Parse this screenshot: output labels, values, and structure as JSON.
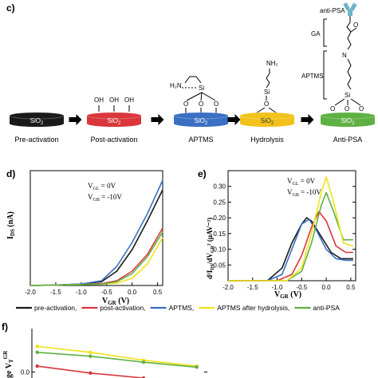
{
  "panel_c": {
    "label": "c)",
    "disk_text": "SiO",
    "disk_sub": "2",
    "steps": [
      {
        "caption": "Pre-activation",
        "color": "#1a1a1a"
      },
      {
        "caption": "Post-activation",
        "color": "#d9373b"
      },
      {
        "caption": "APTMS",
        "color": "#3a6fc4"
      },
      {
        "caption": "Hydrolysis",
        "color": "#f2c21b"
      },
      {
        "caption": "Anti-PSA",
        "color": "#5fb043"
      }
    ],
    "oh_label": "OH",
    "h2n_label": "H₂N",
    "nh2_label": "NH₂",
    "si_label": "Si",
    "o_label": "O",
    "n_label": "N",
    "annotations": {
      "anti_psa": "anti-PSA",
      "ga": "GA",
      "aptms": "APTMS"
    }
  },
  "chart_data": [
    {
      "type": "line",
      "label": "d)",
      "ylabel": "I",
      "ylabel_sub": "DS",
      "ylabel_unit": " (nA)",
      "xlabel": "V",
      "xlabel_sub": "GR",
      "xlabel_unit": " (V)",
      "xlim": [
        -2.0,
        0.6
      ],
      "xticks": [
        "-2.0",
        "-1.5",
        "-1.0",
        "-0.5",
        "0.0",
        "0.5"
      ],
      "bias": [
        "V",
        "GL",
        " = 0V",
        "V",
        "GB",
        " = -10V"
      ],
      "series": [
        {
          "color": "#1a1a1a",
          "x": [
            -2.0,
            -1.5,
            -1.0,
            -0.6,
            -0.3,
            0.0,
            0.3,
            0.6
          ],
          "y": [
            0,
            1,
            3,
            8,
            30,
            75,
            135,
            200
          ]
        },
        {
          "color": "#d9373b",
          "x": [
            -2.0,
            -1.5,
            -1.0,
            -0.6,
            -0.3,
            0.0,
            0.3,
            0.6
          ],
          "y": [
            0,
            1,
            2,
            4,
            10,
            30,
            65,
            120
          ]
        },
        {
          "color": "#3a6fc4",
          "x": [
            -2.0,
            -1.5,
            -1.0,
            -0.6,
            -0.3,
            0.0,
            0.3,
            0.6
          ],
          "y": [
            0,
            1,
            3,
            10,
            40,
            90,
            150,
            220
          ]
        },
        {
          "color": "#f2e21b",
          "x": [
            -2.0,
            -1.5,
            -1.0,
            -0.6,
            -0.3,
            0.0,
            0.3,
            0.6
          ],
          "y": [
            0,
            1,
            2,
            3,
            5,
            15,
            45,
            100
          ]
        },
        {
          "color": "#5fb043",
          "x": [
            -2.0,
            -1.5,
            -1.0,
            -0.6,
            -0.3,
            0.0,
            0.3,
            0.6
          ],
          "y": [
            0,
            1,
            2,
            3,
            8,
            25,
            60,
            112
          ]
        }
      ]
    },
    {
      "type": "line",
      "label": "e)",
      "ylabel": "d²I",
      "ylabel_sub": "DS",
      "ylabel_mid": "/dV",
      "ylabel_sub2": "GR",
      "ylabel_unit": "² (μAV⁻²)",
      "xlabel": "V",
      "xlabel_sub": "GR",
      "xlabel_unit": " (V)",
      "xlim": [
        -2.0,
        0.6
      ],
      "ylim": [
        0,
        0.35
      ],
      "xticks": [
        "-2.0",
        "-1.5",
        "-1.0",
        "-0.5",
        "0.0",
        "0.5"
      ],
      "yticks": [
        "0.05",
        "0.10",
        "0.15",
        "0.20",
        "0.25",
        "0.30"
      ],
      "yticks_values": [
        0.05,
        0.1,
        0.15,
        0.2,
        0.25,
        0.3
      ],
      "bias": [
        "V",
        "GL",
        " = 0V",
        "V",
        "GB",
        " = -10V"
      ],
      "series": [
        {
          "color": "#1a1a1a",
          "x": [
            -2.0,
            -1.2,
            -0.9,
            -0.7,
            -0.5,
            -0.4,
            -0.3,
            -0.1,
            0.1,
            0.3,
            0.55
          ],
          "y": [
            0.0,
            0.0,
            0.04,
            0.12,
            0.18,
            0.2,
            0.19,
            0.14,
            0.09,
            0.07,
            0.07
          ]
        },
        {
          "color": "#3a6fc4",
          "x": [
            -2.0,
            -1.2,
            -0.9,
            -0.7,
            -0.5,
            -0.35,
            -0.2,
            0.0,
            0.2,
            0.4,
            0.55
          ],
          "y": [
            0.0,
            0.0,
            0.02,
            0.1,
            0.18,
            0.195,
            0.16,
            0.1,
            0.07,
            0.065,
            0.065
          ]
        },
        {
          "color": "#d9373b",
          "x": [
            -2.0,
            -1.0,
            -0.7,
            -0.5,
            -0.3,
            -0.15,
            0.0,
            0.2,
            0.4,
            0.55
          ],
          "y": [
            0.0,
            0.0,
            0.02,
            0.08,
            0.17,
            0.22,
            0.19,
            0.11,
            0.09,
            0.09
          ]
        },
        {
          "color": "#5fb043",
          "x": [
            -2.0,
            -0.8,
            -0.5,
            -0.3,
            -0.1,
            0.0,
            0.15,
            0.35,
            0.55
          ],
          "y": [
            0.0,
            0.0,
            0.03,
            0.12,
            0.24,
            0.28,
            0.22,
            0.13,
            0.13
          ]
        },
        {
          "color": "#f2e21b",
          "x": [
            -2.0,
            -0.8,
            -0.5,
            -0.3,
            -0.1,
            0.0,
            0.15,
            0.35,
            0.55
          ],
          "y": [
            0.0,
            0.0,
            0.04,
            0.15,
            0.28,
            0.33,
            0.25,
            0.12,
            0.11
          ]
        }
      ]
    },
    {
      "type": "line",
      "label": "f)",
      "ylabel": "ge V",
      "ylabel_sub": "T",
      "ylabel_sup": "GR",
      "yticks": [
        "0.0"
      ],
      "yticks_values": [
        0.0
      ],
      "ylim": [
        -0.03,
        0.22
      ],
      "series": [
        {
          "color": "#f2e21b",
          "x": [
            0,
            1,
            2,
            3
          ],
          "y": [
            0.13,
            0.1,
            0.06,
            0.03
          ]
        },
        {
          "color": "#5fb043",
          "x": [
            0,
            1,
            2,
            3
          ],
          "y": [
            0.1,
            0.08,
            0.05,
            0.025
          ]
        },
        {
          "color": "#d9373b",
          "x": [
            0,
            1,
            2
          ],
          "y": [
            0.03,
            -0.005,
            -0.03
          ]
        }
      ]
    }
  ],
  "legend": [
    {
      "label": "pre-activation,",
      "color": "#1a1a1a"
    },
    {
      "label": "post-activation,",
      "color": "#d9373b"
    },
    {
      "label": "APTMS,",
      "color": "#3a6fc4"
    },
    {
      "label": "APTMS after hydrolysis,",
      "color": "#f2e21b"
    },
    {
      "label": "anti-PSA",
      "color": "#5fb043"
    }
  ]
}
